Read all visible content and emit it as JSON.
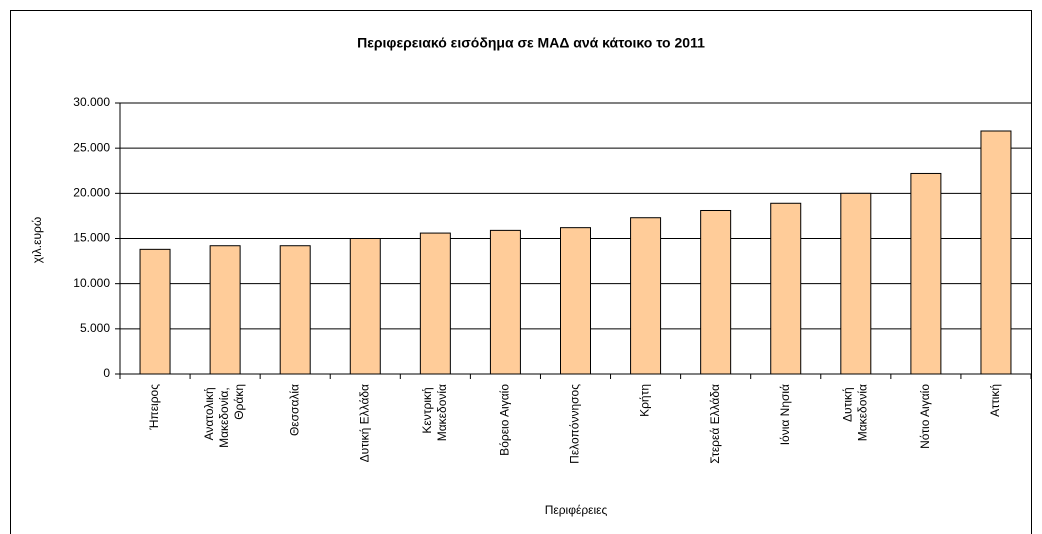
{
  "chart_data": {
    "type": "bar",
    "title": "Περιφερειακό εισόδημα σε ΜΑΔ ανά κάτοικο το 2011",
    "y_label": "χιλ.ευρώ",
    "x_label": "Περιφέρειες",
    "categories": [
      "Ήπειρος",
      "Ανατολική Μακεδονία, Θράκη",
      "Θεσσαλία",
      "Δυτική Ελλάδα",
      "Κεντρική Μακεδονία",
      "Βόρειο Αιγαίο",
      "Πελοπόννησος",
      "Κρήτη",
      "Στερεά Ελλάδα",
      "Ιόνια Νησιά",
      "Δυτική Μακεδονία",
      "Νότιο Αιγαίο",
      "Αττική"
    ],
    "values": [
      13800,
      14200,
      14200,
      15000,
      15600,
      15900,
      16200,
      17300,
      18100,
      18900,
      20000,
      22200,
      26900
    ],
    "color": "#ffcc99",
    "ylim": [
      0,
      30000
    ],
    "yticks": [
      0,
      {
        "value": 5000,
        "label": "5.000"
      },
      {
        "value": 10000,
        "label": "10.000"
      },
      {
        "value": 15000,
        "label": "15.000"
      },
      {
        "value": 20000,
        "label": "20.000"
      },
      {
        "value": 25000,
        "label": "25.000"
      },
      {
        "value": 30000,
        "label": "30.000"
      }
    ],
    "grid": true
  }
}
